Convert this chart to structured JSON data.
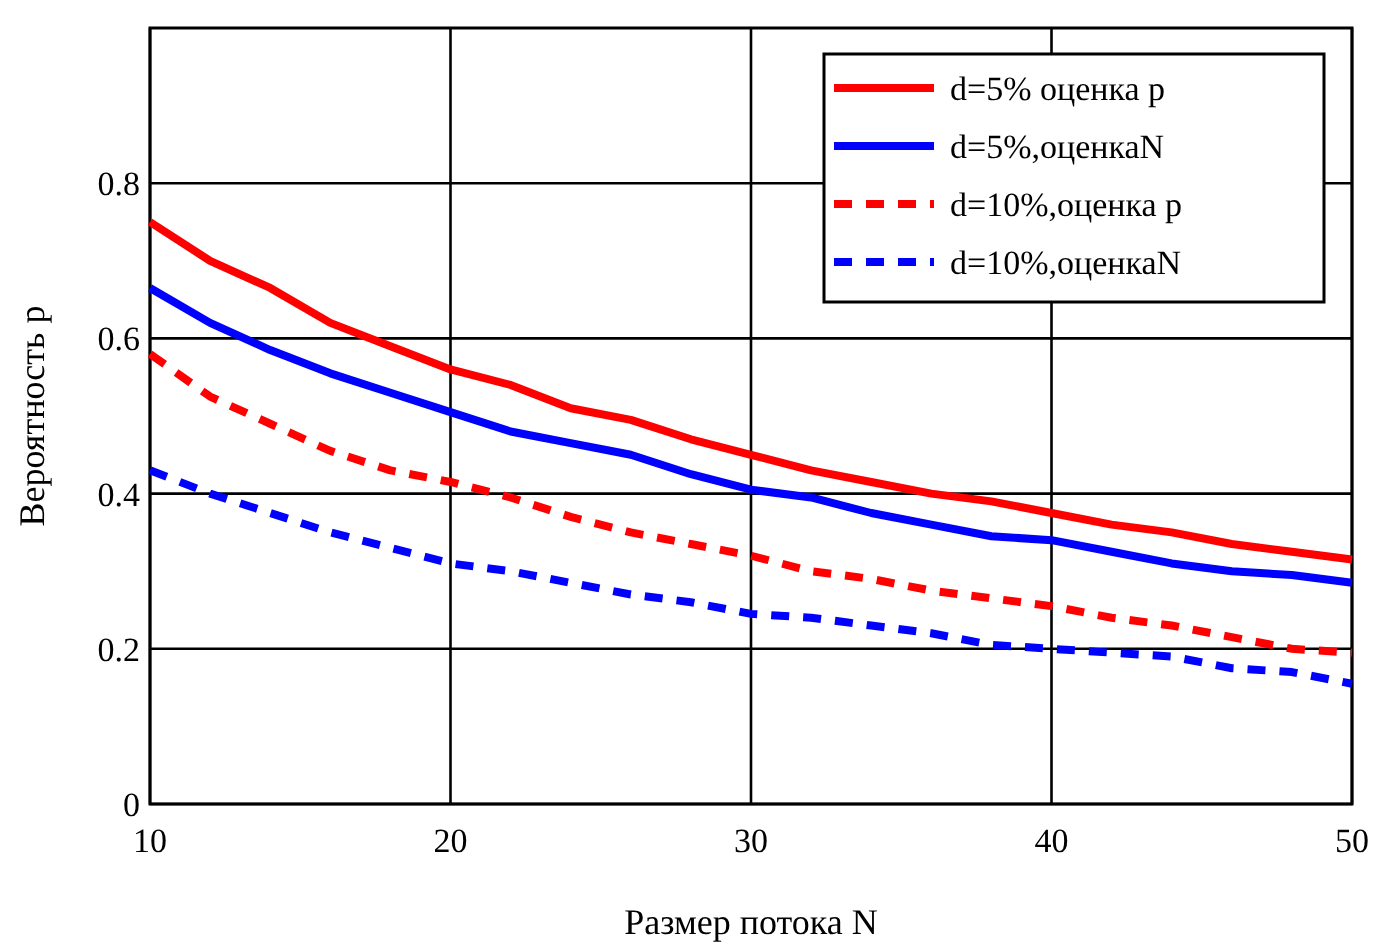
{
  "chart_data": {
    "type": "line",
    "xlabel": "Размер потока N",
    "ylabel": "Вероятность р",
    "x": [
      10,
      12,
      14,
      16,
      18,
      20,
      22,
      24,
      26,
      28,
      30,
      32,
      34,
      36,
      38,
      40,
      42,
      44,
      46,
      48,
      50
    ],
    "xlim": [
      10,
      50
    ],
    "xticks": [
      10,
      20,
      30,
      40,
      50
    ],
    "ylim": [
      0,
      1
    ],
    "yticks": [
      0,
      0.2,
      0.4,
      0.6,
      0.8
    ],
    "grid": true,
    "legend": "top right",
    "series": [
      {
        "name": "d=5% оценка p",
        "color": "#ff0000",
        "line_style": "solid",
        "values": [
          0.75,
          0.7,
          0.665,
          0.62,
          0.59,
          0.56,
          0.54,
          0.51,
          0.495,
          0.47,
          0.45,
          0.43,
          0.415,
          0.4,
          0.39,
          0.375,
          0.36,
          0.35,
          0.335,
          0.325,
          0.315
        ]
      },
      {
        "name": "d=5%,оценкаN",
        "color": "#0000ff",
        "line_style": "solid",
        "values": [
          0.665,
          0.62,
          0.585,
          0.555,
          0.53,
          0.505,
          0.48,
          0.465,
          0.45,
          0.425,
          0.405,
          0.395,
          0.375,
          0.36,
          0.345,
          0.34,
          0.325,
          0.31,
          0.3,
          0.295,
          0.285
        ]
      },
      {
        "name": "d=10%,оценка p",
        "color": "#ff0000",
        "line_style": "dashed",
        "values": [
          0.58,
          0.525,
          0.49,
          0.455,
          0.43,
          0.415,
          0.395,
          0.37,
          0.35,
          0.335,
          0.32,
          0.3,
          0.29,
          0.275,
          0.265,
          0.255,
          0.24,
          0.23,
          0.215,
          0.2,
          0.195
        ]
      },
      {
        "name": "d=10%,оценкаN",
        "color": "#0000ff",
        "line_style": "dashed",
        "values": [
          0.43,
          0.4,
          0.375,
          0.35,
          0.33,
          0.31,
          0.3,
          0.285,
          0.27,
          0.26,
          0.245,
          0.24,
          0.23,
          0.22,
          0.205,
          0.2,
          0.195,
          0.19,
          0.175,
          0.17,
          0.155
        ]
      }
    ]
  }
}
